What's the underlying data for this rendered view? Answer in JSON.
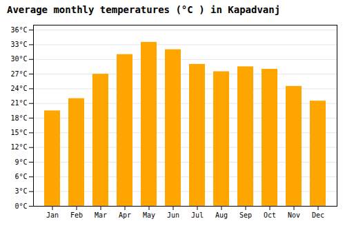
{
  "chart_data": {
    "type": "bar",
    "title": "Average monthly temperatures (°C ) in Kapadvanj",
    "categories": [
      "Jan",
      "Feb",
      "Mar",
      "Apr",
      "May",
      "Jun",
      "Jul",
      "Aug",
      "Sep",
      "Oct",
      "Nov",
      "Dec"
    ],
    "values": [
      19.5,
      22.0,
      27.0,
      31.0,
      33.5,
      32.0,
      29.0,
      27.5,
      28.5,
      28.0,
      24.5,
      21.5
    ],
    "color": "#FFA500",
    "ylim": [
      0,
      37
    ],
    "yticks": [
      {
        "value": 0,
        "label": "0°C"
      },
      {
        "value": 3,
        "label": "3°C"
      },
      {
        "value": 6,
        "label": "6°C"
      },
      {
        "value": 9,
        "label": "9°C"
      },
      {
        "value": 12,
        "label": "12°C"
      },
      {
        "value": 15,
        "label": "15°C"
      },
      {
        "value": 18,
        "label": "18°C"
      },
      {
        "value": 21,
        "label": "21°C"
      },
      {
        "value": 24,
        "label": "24°C"
      },
      {
        "value": 27,
        "label": "27°C"
      },
      {
        "value": 30,
        "label": "30°C"
      },
      {
        "value": 33,
        "label": "33°C"
      },
      {
        "value": 36,
        "label": "36°C"
      }
    ],
    "grid": true
  }
}
